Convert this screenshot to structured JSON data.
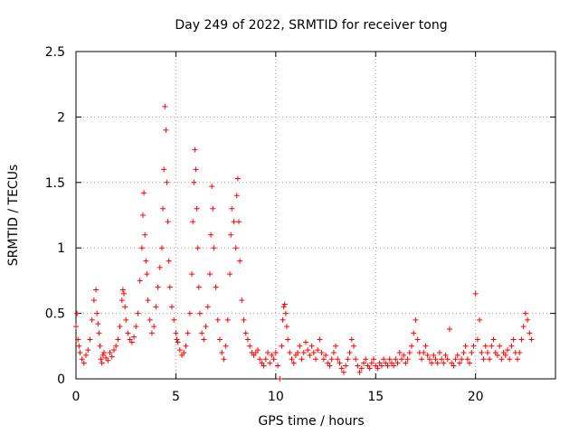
{
  "chart_data": {
    "type": "scatter",
    "title": "Day 249 of 2022, SRMTID for receiver tong",
    "xlabel": "GPS time / hours",
    "ylabel": "SRMTID / TECUs",
    "xlim": [
      0,
      24
    ],
    "ylim": [
      0,
      2.5
    ],
    "xticks": [
      0,
      5,
      10,
      15,
      20
    ],
    "xtick_labels": [
      "0",
      "5",
      "10",
      "15",
      "20"
    ],
    "yticks": [
      0,
      0.5,
      1,
      1.5,
      2,
      2.5
    ],
    "ytick_labels": [
      "0",
      "0.5",
      "1",
      "1.5",
      "2",
      "2.5"
    ],
    "grid": true,
    "marker": "plus",
    "series": [
      {
        "name": "SRMTID",
        "color": "#ff0000",
        "x": [
          0.0,
          0.05,
          0.1,
          0.15,
          0.2,
          0.3,
          0.4,
          0.5,
          0.6,
          0.7,
          0.8,
          0.9,
          1.0,
          1.05,
          1.1,
          1.15,
          1.2,
          1.25,
          1.3,
          1.35,
          1.4,
          1.5,
          1.6,
          1.7,
          1.8,
          1.9,
          2.0,
          2.1,
          2.2,
          2.3,
          2.35,
          2.4,
          2.45,
          2.5,
          2.6,
          2.7,
          2.8,
          2.9,
          3.0,
          3.1,
          3.2,
          3.3,
          3.35,
          3.4,
          3.45,
          3.5,
          3.55,
          3.6,
          3.7,
          3.8,
          3.9,
          4.0,
          4.1,
          4.2,
          4.3,
          4.35,
          4.4,
          4.45,
          4.5,
          4.55,
          4.6,
          4.65,
          4.7,
          4.8,
          4.9,
          5.0,
          5.05,
          5.1,
          5.2,
          5.3,
          5.4,
          5.5,
          5.6,
          5.7,
          5.8,
          5.85,
          5.9,
          5.95,
          6.0,
          6.05,
          6.1,
          6.15,
          6.2,
          6.3,
          6.4,
          6.5,
          6.6,
          6.7,
          6.75,
          6.8,
          6.85,
          6.9,
          7.0,
          7.1,
          7.2,
          7.3,
          7.4,
          7.5,
          7.6,
          7.7,
          7.75,
          7.8,
          7.9,
          8.0,
          8.05,
          8.1,
          8.15,
          8.2,
          8.3,
          8.4,
          8.5,
          8.6,
          8.7,
          8.8,
          8.9,
          9.0,
          9.1,
          9.2,
          9.3,
          9.4,
          9.5,
          9.6,
          9.7,
          9.8,
          9.9,
          10.0,
          10.1,
          10.2,
          10.3,
          10.35,
          10.4,
          10.45,
          10.5,
          10.55,
          10.6,
          10.7,
          10.8,
          10.9,
          11.0,
          11.1,
          11.2,
          11.3,
          11.4,
          11.5,
          11.6,
          11.7,
          11.8,
          11.9,
          12.0,
          12.1,
          12.2,
          12.3,
          12.4,
          12.5,
          12.6,
          12.7,
          12.8,
          12.9,
          13.0,
          13.1,
          13.2,
          13.3,
          13.4,
          13.5,
          13.6,
          13.7,
          13.8,
          13.9,
          14.0,
          14.1,
          14.2,
          14.3,
          14.4,
          14.5,
          14.6,
          14.7,
          14.8,
          14.9,
          15.0,
          15.1,
          15.2,
          15.3,
          15.4,
          15.5,
          15.6,
          15.7,
          15.8,
          15.9,
          16.0,
          16.1,
          16.2,
          16.3,
          16.4,
          16.5,
          16.6,
          16.7,
          16.8,
          16.9,
          17.0,
          17.1,
          17.2,
          17.3,
          17.4,
          17.5,
          17.6,
          17.7,
          17.8,
          17.9,
          18.0,
          18.1,
          18.2,
          18.3,
          18.4,
          18.5,
          18.6,
          18.7,
          18.8,
          18.9,
          19.0,
          19.1,
          19.2,
          19.3,
          19.4,
          19.5,
          19.6,
          19.7,
          19.8,
          19.9,
          20.0,
          20.1,
          20.2,
          20.3,
          20.4,
          20.5,
          20.6,
          20.7,
          20.8,
          20.9,
          21.0,
          21.1,
          21.2,
          21.3,
          21.4,
          21.5,
          21.6,
          21.7,
          21.8,
          21.9,
          22.0,
          22.1,
          22.2,
          22.3,
          22.4,
          22.5,
          22.6,
          22.7,
          22.8
        ],
        "y": [
          0.4,
          0.5,
          0.3,
          0.25,
          0.2,
          0.15,
          0.12,
          0.18,
          0.22,
          0.3,
          0.45,
          0.6,
          0.68,
          0.5,
          0.42,
          0.35,
          0.25,
          0.15,
          0.12,
          0.18,
          0.2,
          0.16,
          0.14,
          0.2,
          0.17,
          0.22,
          0.25,
          0.3,
          0.4,
          0.6,
          0.68,
          0.65,
          0.55,
          0.45,
          0.35,
          0.3,
          0.28,
          0.32,
          0.4,
          0.5,
          0.75,
          1.0,
          1.25,
          1.42,
          1.1,
          0.9,
          0.8,
          0.6,
          0.45,
          0.35,
          0.4,
          0.55,
          0.7,
          0.85,
          1.0,
          1.3,
          1.6,
          2.08,
          1.9,
          1.5,
          1.2,
          0.9,
          0.7,
          0.55,
          0.45,
          0.35,
          0.3,
          0.28,
          0.22,
          0.18,
          0.2,
          0.25,
          0.35,
          0.5,
          0.8,
          1.2,
          1.5,
          1.75,
          1.6,
          1.3,
          1.0,
          0.7,
          0.5,
          0.35,
          0.3,
          0.4,
          0.55,
          0.8,
          1.1,
          1.47,
          1.3,
          1.0,
          0.7,
          0.45,
          0.3,
          0.2,
          0.15,
          0.25,
          0.45,
          0.8,
          1.1,
          1.3,
          1.2,
          1.0,
          1.4,
          1.53,
          1.2,
          0.9,
          0.6,
          0.45,
          0.35,
          0.3,
          0.25,
          0.2,
          0.18,
          0.2,
          0.22,
          0.15,
          0.12,
          0.1,
          0.15,
          0.2,
          0.12,
          0.18,
          0.15,
          0.2,
          0.1,
          0.0,
          0.25,
          0.45,
          0.55,
          0.57,
          0.5,
          0.4,
          0.3,
          0.2,
          0.15,
          0.12,
          0.18,
          0.2,
          0.25,
          0.15,
          0.2,
          0.28,
          0.22,
          0.18,
          0.25,
          0.2,
          0.15,
          0.22,
          0.3,
          0.2,
          0.15,
          0.18,
          0.12,
          0.1,
          0.15,
          0.2,
          0.25,
          0.15,
          0.12,
          0.08,
          0.05,
          0.1,
          0.15,
          0.2,
          0.3,
          0.25,
          0.15,
          0.1,
          0.05,
          0.08,
          0.12,
          0.15,
          0.1,
          0.08,
          0.12,
          0.15,
          0.1,
          0.08,
          0.12,
          0.1,
          0.15,
          0.12,
          0.1,
          0.15,
          0.12,
          0.1,
          0.15,
          0.12,
          0.2,
          0.15,
          0.18,
          0.12,
          0.15,
          0.2,
          0.25,
          0.35,
          0.45,
          0.3,
          0.2,
          0.15,
          0.2,
          0.25,
          0.18,
          0.15,
          0.12,
          0.18,
          0.15,
          0.12,
          0.2,
          0.15,
          0.12,
          0.18,
          0.15,
          0.38,
          0.12,
          0.1,
          0.15,
          0.18,
          0.12,
          0.15,
          0.2,
          0.25,
          0.15,
          0.12,
          0.2,
          0.25,
          0.65,
          0.3,
          0.45,
          0.2,
          0.15,
          0.25,
          0.2,
          0.15,
          0.25,
          0.3,
          0.2,
          0.18,
          0.25,
          0.15,
          0.2,
          0.18,
          0.22,
          0.15,
          0.25,
          0.3,
          0.2,
          0.15,
          0.2,
          0.3,
          0.4,
          0.5,
          0.45,
          0.35,
          0.3
        ]
      }
    ]
  }
}
